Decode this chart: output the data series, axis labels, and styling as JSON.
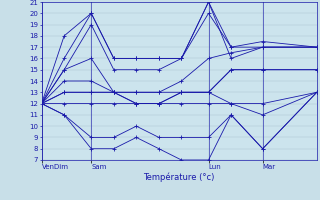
{
  "xlabel": "Température (°c)",
  "bg_color": "#c8dfe8",
  "plot_bg_color": "#cce4ed",
  "line_color": "#1a1aaa",
  "grid_color": "#a8c4d0",
  "ylim": [
    7,
    21
  ],
  "yticks": [
    7,
    8,
    9,
    10,
    11,
    12,
    13,
    14,
    15,
    16,
    17,
    18,
    19,
    20,
    21
  ],
  "xtick_labels": [
    "VenDim",
    "Sam",
    "Lun",
    "Mar"
  ],
  "xtick_x": [
    0,
    55,
    185,
    245
  ],
  "vline_x": [
    0,
    55,
    185,
    245,
    305
  ],
  "x_max": 305,
  "series": [
    {
      "x": [
        0,
        25,
        55,
        80,
        105,
        130,
        155,
        185,
        210,
        245,
        305
      ],
      "y": [
        12,
        18,
        20,
        16,
        16,
        16,
        16,
        21,
        16,
        17,
        17
      ]
    },
    {
      "x": [
        0,
        25,
        55,
        80,
        105,
        130,
        155,
        185,
        210,
        245,
        305
      ],
      "y": [
        12,
        16,
        20,
        16,
        16,
        16,
        16,
        21,
        17,
        17,
        17
      ]
    },
    {
      "x": [
        0,
        25,
        55,
        80,
        105,
        130,
        155,
        185,
        210,
        245,
        305
      ],
      "y": [
        12,
        15,
        19,
        15,
        15,
        15,
        16,
        20,
        17,
        17.5,
        17
      ]
    },
    {
      "x": [
        0,
        25,
        55,
        80,
        105,
        130,
        155,
        185,
        210,
        245,
        305
      ],
      "y": [
        12,
        15,
        16,
        13,
        13,
        13,
        14,
        16,
        16.5,
        17,
        17
      ]
    },
    {
      "x": [
        0,
        25,
        55,
        80,
        105,
        130,
        155,
        185,
        210,
        245,
        305
      ],
      "y": [
        12,
        14,
        14,
        13,
        13,
        13,
        13,
        13,
        15,
        15,
        15
      ]
    },
    {
      "x": [
        0,
        25,
        55,
        80,
        105,
        130,
        155,
        185,
        210,
        245,
        305
      ],
      "y": [
        12,
        13,
        13,
        13,
        12,
        12,
        13,
        13,
        15,
        15,
        15
      ]
    },
    {
      "x": [
        0,
        25,
        55,
        80,
        105,
        130,
        155,
        185,
        210,
        245,
        305
      ],
      "y": [
        12,
        13,
        13,
        13,
        12,
        12,
        13,
        13,
        12,
        11,
        13
      ]
    },
    {
      "x": [
        0,
        25,
        55,
        80,
        105,
        130,
        155,
        185,
        210,
        245,
        305
      ],
      "y": [
        12,
        12,
        12,
        12,
        12,
        12,
        12,
        12,
        12,
        12,
        13
      ]
    },
    {
      "x": [
        0,
        25,
        55,
        80,
        105,
        130,
        155,
        185,
        210,
        245,
        305
      ],
      "y": [
        12,
        11,
        9,
        9,
        10,
        9,
        9,
        9,
        11,
        8,
        13
      ]
    },
    {
      "x": [
        0,
        25,
        55,
        80,
        105,
        130,
        155,
        185,
        210,
        245,
        305
      ],
      "y": [
        12,
        11,
        8,
        8,
        9,
        8,
        7,
        7,
        11,
        8,
        13
      ]
    }
  ]
}
